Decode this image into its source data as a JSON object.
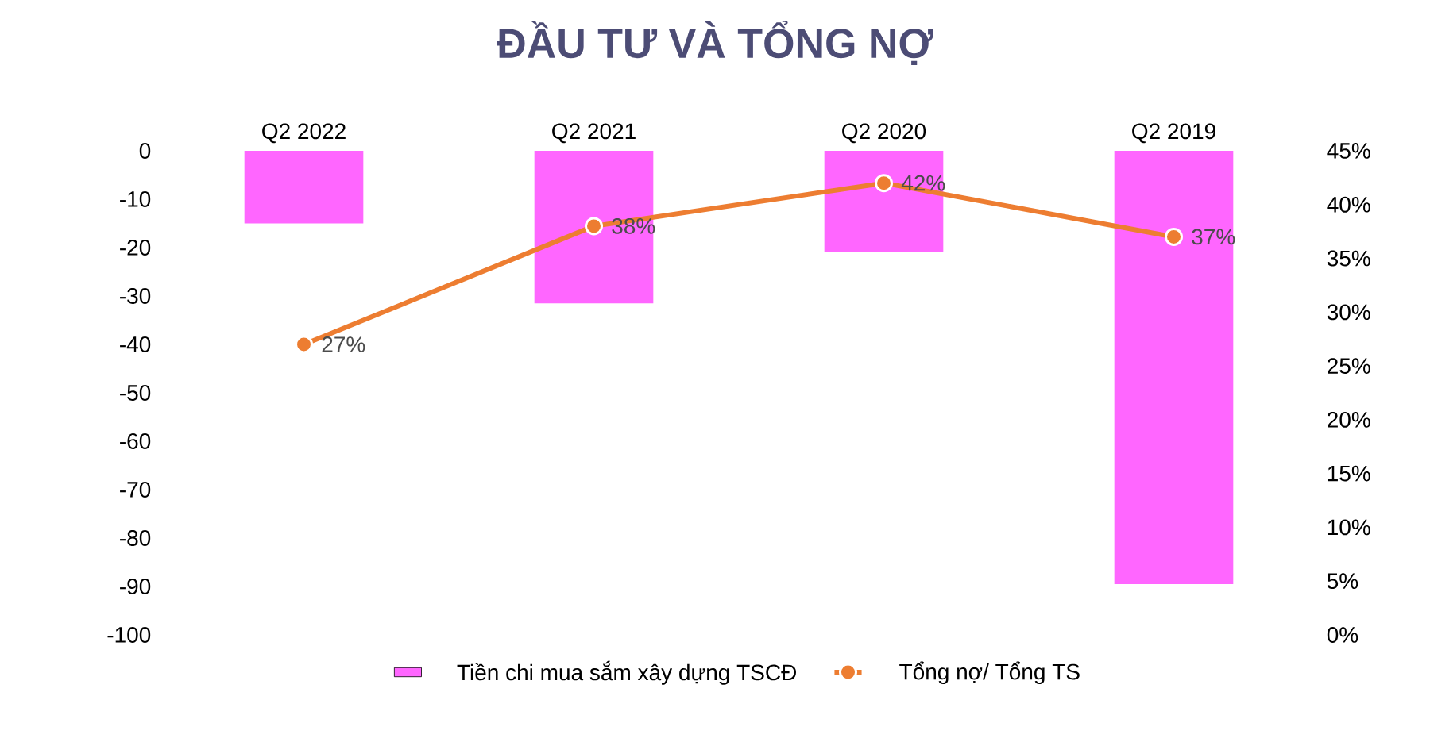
{
  "chart_data": {
    "type": "bar",
    "title": "ĐẦU TƯ VÀ TỔNG NỢ",
    "categories": [
      "Q2 2022",
      "Q2 2021",
      "Q2 2020",
      "Q2 2019"
    ],
    "series": [
      {
        "name": "Tiền chi mua sắm xây dựng TSCĐ",
        "color": "#ff66ff",
        "values": [
          -15,
          -31.5,
          -21,
          -89.5
        ]
      },
      {
        "name": "Tổng nợ/ Tổng TS",
        "type": "line",
        "axis": "y2",
        "color": "#ed7d31",
        "values": [
          27,
          38,
          42,
          37
        ],
        "value_labels": [
          "27%",
          "38%",
          "42%",
          "37%"
        ]
      }
    ],
    "ylim": [
      -100,
      0
    ],
    "yticks": [
      -100,
      -90,
      -80,
      -70,
      -60,
      -50,
      -40,
      -30,
      -20,
      -10,
      0
    ],
    "y2lim": [
      0,
      45
    ],
    "y2ticks": [
      {
        "value": 0,
        "label": "0%"
      },
      {
        "value": 5,
        "label": "5%"
      },
      {
        "value": 10,
        "label": "10%"
      },
      {
        "value": 15,
        "label": "15%"
      },
      {
        "value": 20,
        "label": "20%"
      },
      {
        "value": 25,
        "label": "25%"
      },
      {
        "value": 30,
        "label": "30%"
      },
      {
        "value": 35,
        "label": "35%"
      },
      {
        "value": 40,
        "label": "40%"
      },
      {
        "value": 45,
        "label": "45%"
      }
    ],
    "marker": "circle",
    "legend": "bottom"
  }
}
